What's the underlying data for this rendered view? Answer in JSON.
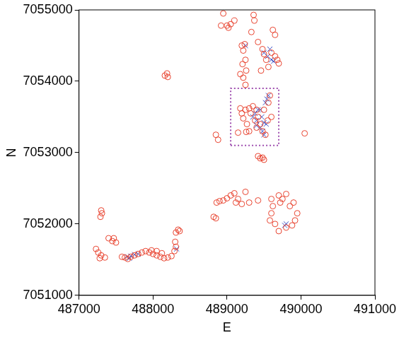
{
  "chart_data": {
    "type": "scatter",
    "x_label": "E",
    "y_label": "N",
    "xlim": [
      487000,
      491000
    ],
    "xticks": [
      487000,
      488000,
      489000,
      490000,
      491000
    ],
    "ylim": [
      7051000,
      7055000
    ],
    "yticks": [
      7051000,
      7052000,
      7053000,
      7054000,
      7055000
    ],
    "grid": false,
    "series": [
      {
        "color": "#e8432f",
        "marker": "circle",
        "points": [
          [
            487230,
            7051650
          ],
          [
            487260,
            7051600
          ],
          [
            487300,
            7051560
          ],
          [
            487350,
            7051530
          ],
          [
            487280,
            7051520
          ],
          [
            487290,
            7052100
          ],
          [
            487310,
            7052150
          ],
          [
            487300,
            7052190
          ],
          [
            487400,
            7051800
          ],
          [
            487450,
            7051760
          ],
          [
            487500,
            7051740
          ],
          [
            487470,
            7051800
          ],
          [
            487580,
            7051540
          ],
          [
            487620,
            7051530
          ],
          [
            487660,
            7051510
          ],
          [
            487700,
            7051540
          ],
          [
            487750,
            7051560
          ],
          [
            487800,
            7051580
          ],
          [
            487850,
            7051600
          ],
          [
            487900,
            7051620
          ],
          [
            487950,
            7051600
          ],
          [
            488000,
            7051580
          ],
          [
            488050,
            7051560
          ],
          [
            488100,
            7051540
          ],
          [
            488150,
            7051520
          ],
          [
            488200,
            7051530
          ],
          [
            488250,
            7051550
          ],
          [
            488050,
            7051620
          ],
          [
            488120,
            7051590
          ],
          [
            487980,
            7051630
          ],
          [
            488310,
            7051880
          ],
          [
            488340,
            7051920
          ],
          [
            488360,
            7051900
          ],
          [
            488300,
            7051750
          ],
          [
            488310,
            7051680
          ],
          [
            488290,
            7051620
          ],
          [
            488160,
            7054080
          ],
          [
            488190,
            7054110
          ],
          [
            488200,
            7054060
          ],
          [
            488820,
            7052100
          ],
          [
            488850,
            7052080
          ],
          [
            488860,
            7052300
          ],
          [
            488900,
            7052320
          ],
          [
            488950,
            7052330
          ],
          [
            489000,
            7052360
          ],
          [
            489050,
            7052400
          ],
          [
            489100,
            7052430
          ],
          [
            489120,
            7052300
          ],
          [
            489200,
            7052280
          ],
          [
            489150,
            7052350
          ],
          [
            489300,
            7052300
          ],
          [
            489250,
            7052450
          ],
          [
            489420,
            7052330
          ],
          [
            489580,
            7052050
          ],
          [
            489600,
            7052150
          ],
          [
            489620,
            7052250
          ],
          [
            489700,
            7052400
          ],
          [
            489720,
            7052300
          ],
          [
            489750,
            7052350
          ],
          [
            489800,
            7052420
          ],
          [
            489850,
            7052250
          ],
          [
            489900,
            7052300
          ],
          [
            489950,
            7052150
          ],
          [
            489920,
            7052050
          ],
          [
            489880,
            7051980
          ],
          [
            489650,
            7052000
          ],
          [
            489700,
            7051900
          ],
          [
            489800,
            7051950
          ],
          [
            489600,
            7052350
          ],
          [
            488920,
            7054780
          ],
          [
            488950,
            7054950
          ],
          [
            489000,
            7054780
          ],
          [
            489050,
            7054800
          ],
          [
            489100,
            7054850
          ],
          [
            489020,
            7054750
          ],
          [
            489360,
            7054930
          ],
          [
            489370,
            7054850
          ],
          [
            489330,
            7054690
          ],
          [
            489200,
            7054500
          ],
          [
            489220,
            7054430
          ],
          [
            489250,
            7054300
          ],
          [
            489210,
            7054240
          ],
          [
            489180,
            7054100
          ],
          [
            489220,
            7054050
          ],
          [
            489260,
            7054150
          ],
          [
            489240,
            7054520
          ],
          [
            489420,
            7054550
          ],
          [
            489480,
            7054450
          ],
          [
            489500,
            7054380
          ],
          [
            489530,
            7054300
          ],
          [
            489560,
            7054200
          ],
          [
            489600,
            7054400
          ],
          [
            489650,
            7054350
          ],
          [
            489680,
            7054300
          ],
          [
            489620,
            7054720
          ],
          [
            489650,
            7054650
          ],
          [
            489700,
            7054250
          ],
          [
            489460,
            7054150
          ],
          [
            489180,
            7053620
          ],
          [
            489200,
            7053550
          ],
          [
            489220,
            7053480
          ],
          [
            489250,
            7053600
          ],
          [
            489270,
            7053400
          ],
          [
            489300,
            7053300
          ],
          [
            489320,
            7053550
          ],
          [
            489350,
            7053650
          ],
          [
            489380,
            7053450
          ],
          [
            489400,
            7053350
          ],
          [
            489420,
            7053500
          ],
          [
            489450,
            7053400
          ],
          [
            489480,
            7053300
          ],
          [
            489500,
            7053600
          ],
          [
            489520,
            7053250
          ],
          [
            489550,
            7053450
          ],
          [
            489560,
            7053700
          ],
          [
            489580,
            7053800
          ],
          [
            489600,
            7053500
          ],
          [
            489260,
            7053290
          ],
          [
            489150,
            7053280
          ],
          [
            489300,
            7053620
          ],
          [
            489400,
            7053600
          ],
          [
            489420,
            7052950
          ],
          [
            489450,
            7052920
          ],
          [
            489480,
            7052930
          ],
          [
            489500,
            7052900
          ],
          [
            488850,
            7053250
          ],
          [
            488880,
            7053180
          ],
          [
            490050,
            7053270
          ],
          [
            489250,
            7053950
          ]
        ]
      },
      {
        "color": "#3a4fc4",
        "marker": "x",
        "points": [
          [
            489350,
            7053500
          ],
          [
            489380,
            7053550
          ],
          [
            489400,
            7053450
          ],
          [
            489420,
            7053600
          ],
          [
            489450,
            7053350
          ],
          [
            489470,
            7053500
          ],
          [
            489500,
            7053420
          ],
          [
            489520,
            7053700
          ],
          [
            489540,
            7053750
          ],
          [
            489560,
            7053800
          ],
          [
            489480,
            7053300
          ],
          [
            489500,
            7053250
          ],
          [
            489450,
            7053600
          ],
          [
            489530,
            7053400
          ],
          [
            489400,
            7053380
          ],
          [
            489500,
            7054400
          ],
          [
            489550,
            7054350
          ],
          [
            489600,
            7054300
          ],
          [
            489630,
            7054280
          ],
          [
            489580,
            7054450
          ],
          [
            489250,
            7054500
          ],
          [
            487650,
            7051540
          ],
          [
            487700,
            7051550
          ],
          [
            487750,
            7051570
          ],
          [
            487800,
            7051580
          ],
          [
            487680,
            7051520
          ],
          [
            488320,
            7051650
          ],
          [
            489800,
            7052000
          ],
          [
            489780,
            7051980
          ]
        ]
      }
    ],
    "box": {
      "x": [
        489050,
        489700
      ],
      "y": [
        7053100,
        7053900
      ],
      "color": "#a050b0",
      "line_style": "dotted"
    }
  }
}
